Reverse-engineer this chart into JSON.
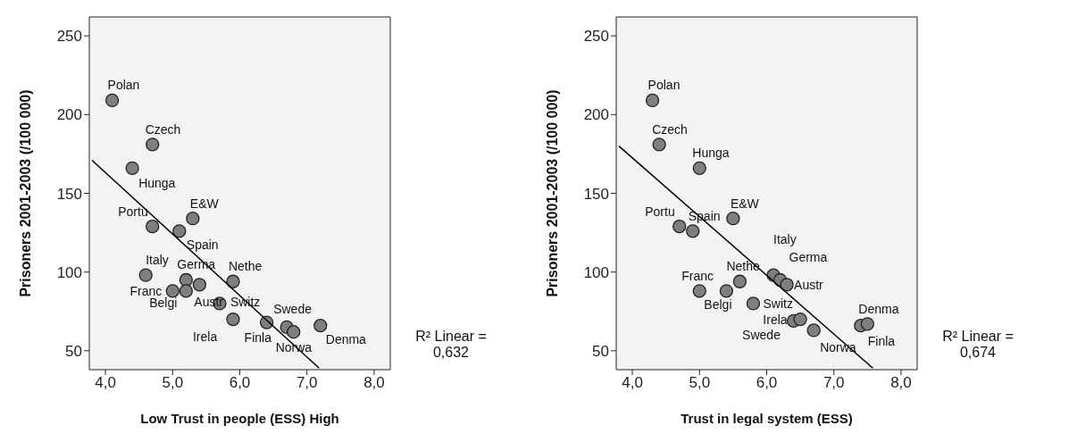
{
  "chart_data": [
    {
      "type": "scatter",
      "xlabel": "Low    Trust in people (ESS)    High",
      "ylabel": "Prisoners 2001-2003 (/100 000)",
      "annotations": [
        "R² Linear = 0,632"
      ],
      "grid": false,
      "xlim": [
        3.76,
        8.24
      ],
      "xticks": [
        {
          "value": 4,
          "label": "4,0"
        },
        {
          "value": 5,
          "label": "5,0"
        },
        {
          "value": 6,
          "label": "6,0"
        },
        {
          "value": 7,
          "label": "7,0"
        },
        {
          "value": 8,
          "label": "8,0"
        }
      ],
      "ylim": [
        38,
        262
      ],
      "yticks": [
        50,
        100,
        150,
        200,
        250
      ],
      "series": [
        {
          "marker": "circle",
          "color": "#7f7f7f",
          "x": [
            4.1,
            4.7,
            4.4,
            4.7,
            5.1,
            5.3,
            4.6,
            5.2,
            5.0,
            5.2,
            5.4,
            5.9,
            5.7,
            5.9,
            6.4,
            6.7,
            6.8,
            7.2
          ],
          "values": [
            209,
            181,
            166,
            129,
            126,
            134,
            98,
            95,
            88,
            88,
            92,
            94,
            80,
            70,
            68,
            65,
            62,
            66
          ],
          "value_labels": [
            "Polan",
            "Czech",
            "Hunga",
            "Portu",
            "Spain",
            "E&W",
            "Italy",
            "Germa",
            "Franc",
            "Belgi",
            "Austr",
            "Nethe",
            "Switz",
            "Irela",
            "Finla",
            "Swede",
            "Norwa",
            "Denma"
          ]
        },
        {
          "type": "line",
          "color": "#000000",
          "x": [
            3.8,
            7.18
          ],
          "values": [
            171,
            39
          ]
        }
      ]
    },
    {
      "type": "scatter",
      "xlabel": "Trust in legal system (ESS)",
      "ylabel": "Prisoners 2001-2003 (/100 000)",
      "annotations": [
        "R² Linear = 0,674"
      ],
      "grid": false,
      "xlim": [
        3.76,
        8.24
      ],
      "xticks": [
        {
          "value": 4,
          "label": "4,0"
        },
        {
          "value": 5,
          "label": "5,0"
        },
        {
          "value": 6,
          "label": "6,0"
        },
        {
          "value": 7,
          "label": "7,0"
        },
        {
          "value": 8,
          "label": "8,0"
        }
      ],
      "ylim": [
        38,
        262
      ],
      "yticks": [
        50,
        100,
        150,
        200,
        250
      ],
      "series": [
        {
          "marker": "circle",
          "color": "#7f7f7f",
          "x": [
            4.3,
            4.4,
            5.0,
            4.7,
            4.9,
            5.5,
            6.1,
            6.2,
            5.0,
            5.4,
            6.3,
            5.6,
            5.8,
            6.4,
            7.4,
            6.5,
            6.7,
            7.5
          ],
          "values": [
            209,
            181,
            166,
            129,
            126,
            134,
            98,
            95,
            88,
            88,
            92,
            94,
            80,
            69,
            66,
            70,
            63,
            67
          ],
          "value_labels": [
            "Polan",
            "Czech",
            "Hunga",
            "Portu",
            "Spain",
            "E&W",
            "Italy",
            "Germa",
            "Franc",
            "Belgi",
            "Austr",
            "Nethe",
            "Switz",
            "Irela",
            "Finla",
            "Swede",
            "Norwa",
            "Denma"
          ]
        },
        {
          "type": "line",
          "color": "#000000",
          "x": [
            3.8,
            7.58
          ],
          "values": [
            180,
            39
          ]
        }
      ]
    }
  ]
}
